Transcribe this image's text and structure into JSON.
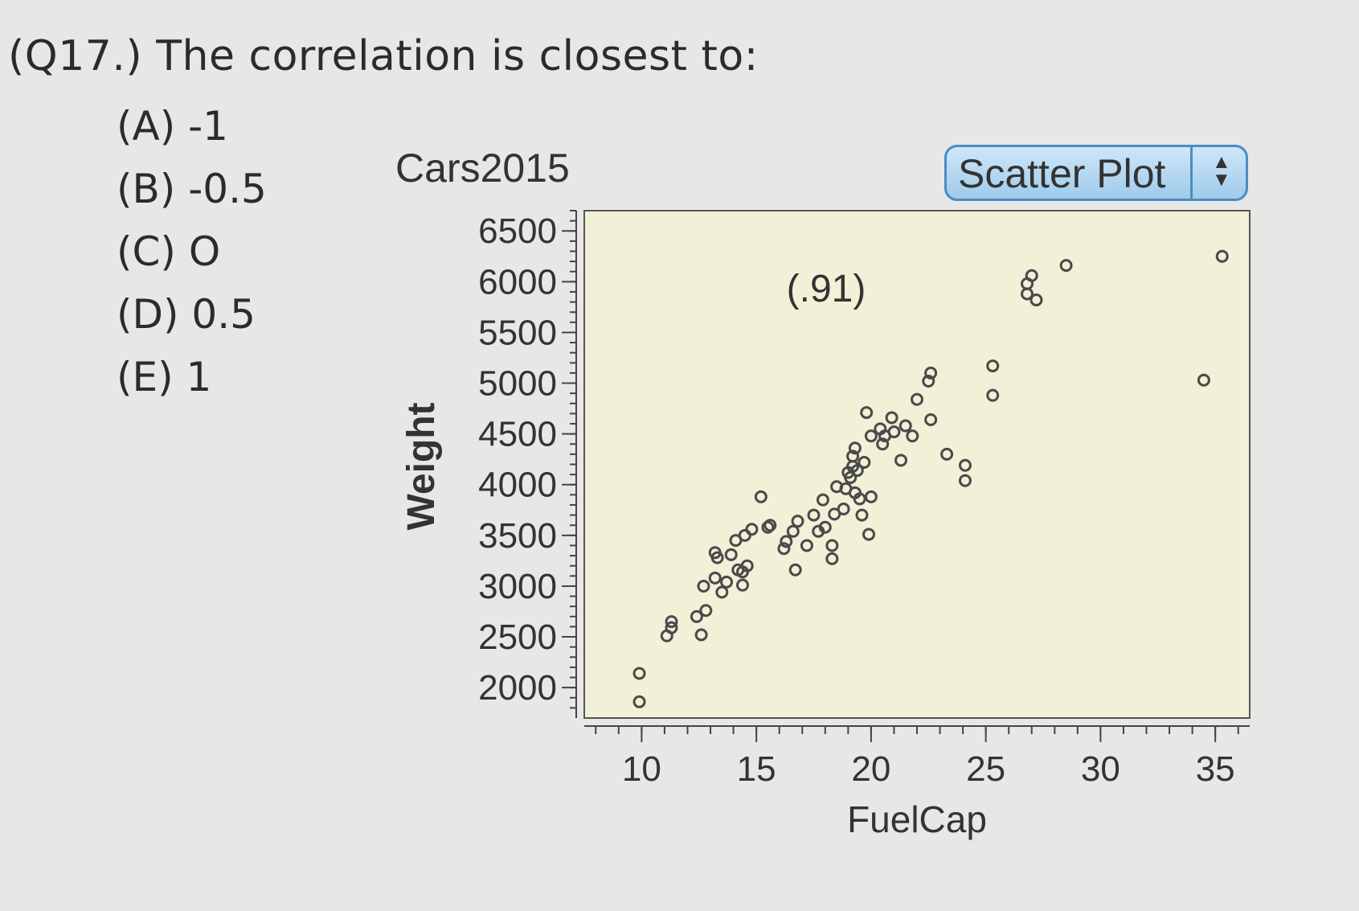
{
  "question": "(Q17.) The correlation is closest to:",
  "choices": [
    "(A) -1",
    "(B) -0.5",
    "(C) O",
    "(D) 0.5",
    "(E) 1"
  ],
  "dataset_title": "Cars2015",
  "plot_type_selector": "Scatter Plot",
  "colors": {
    "plot_bg": "#f2f0d6",
    "point": "#4a4a4a",
    "annotation": "#b23a3a",
    "selector": "#4a8cc3"
  },
  "chart_data": {
    "type": "scatter",
    "title": "Cars2015",
    "xlabel": "FuelCap",
    "ylabel": "Weight",
    "annotation": "(.91)",
    "xlim": [
      7.5,
      36.5
    ],
    "ylim": [
      1700,
      6700
    ],
    "xticks": [
      10,
      15,
      20,
      25,
      30,
      35
    ],
    "yticks": [
      2000,
      2500,
      3000,
      3500,
      4000,
      4500,
      5000,
      5500,
      6000,
      6500
    ],
    "grid": false,
    "x": [
      9.9,
      9.9,
      11.1,
      11.3,
      11.3,
      12.6,
      12.4,
      12.8,
      12.7,
      13.2,
      13.3,
      13.2,
      13.5,
      13.7,
      13.9,
      14.1,
      14.2,
      14.4,
      14.4,
      14.6,
      14.5,
      14.8,
      15.5,
      15.2,
      15.6,
      16.2,
      16.3,
      16.6,
      16.8,
      16.7,
      17.2,
      17.7,
      18.0,
      17.5,
      17.9,
      18.3,
      18.3,
      18.4,
      18.5,
      18.8,
      18.9,
      19.0,
      19.2,
      19.2,
      19.3,
      19.1,
      19.3,
      19.4,
      19.7,
      19.5,
      19.6,
      19.9,
      20.0,
      19.8,
      20.4,
      20.0,
      20.5,
      20.6,
      20.9,
      21.0,
      21.3,
      21.5,
      21.8,
      22.0,
      22.5,
      22.6,
      22.6,
      23.3,
      24.1,
      24.1,
      25.3,
      25.3,
      26.8,
      26.8,
      27.0,
      27.2,
      28.5,
      34.5,
      35.3
    ],
    "y": [
      2140,
      1860,
      2510,
      2590,
      2650,
      2520,
      2700,
      2760,
      3000,
      3080,
      3280,
      3330,
      2940,
      3040,
      3310,
      3450,
      3160,
      3010,
      3140,
      3200,
      3500,
      3560,
      3580,
      3880,
      3600,
      3370,
      3440,
      3540,
      3640,
      3160,
      3400,
      3540,
      3580,
      3700,
      3850,
      3270,
      3400,
      3710,
      3980,
      3760,
      3960,
      4120,
      4180,
      4280,
      4360,
      4070,
      3920,
      4140,
      4220,
      3860,
      3700,
      3510,
      4480,
      4710,
      4550,
      3880,
      4400,
      4480,
      4660,
      4520,
      4240,
      4580,
      4480,
      4840,
      5020,
      5100,
      4640,
      4300,
      4190,
      4040,
      4880,
      5170,
      5880,
      5980,
      6060,
      5820,
      6160,
      5030,
      6250
    ]
  }
}
